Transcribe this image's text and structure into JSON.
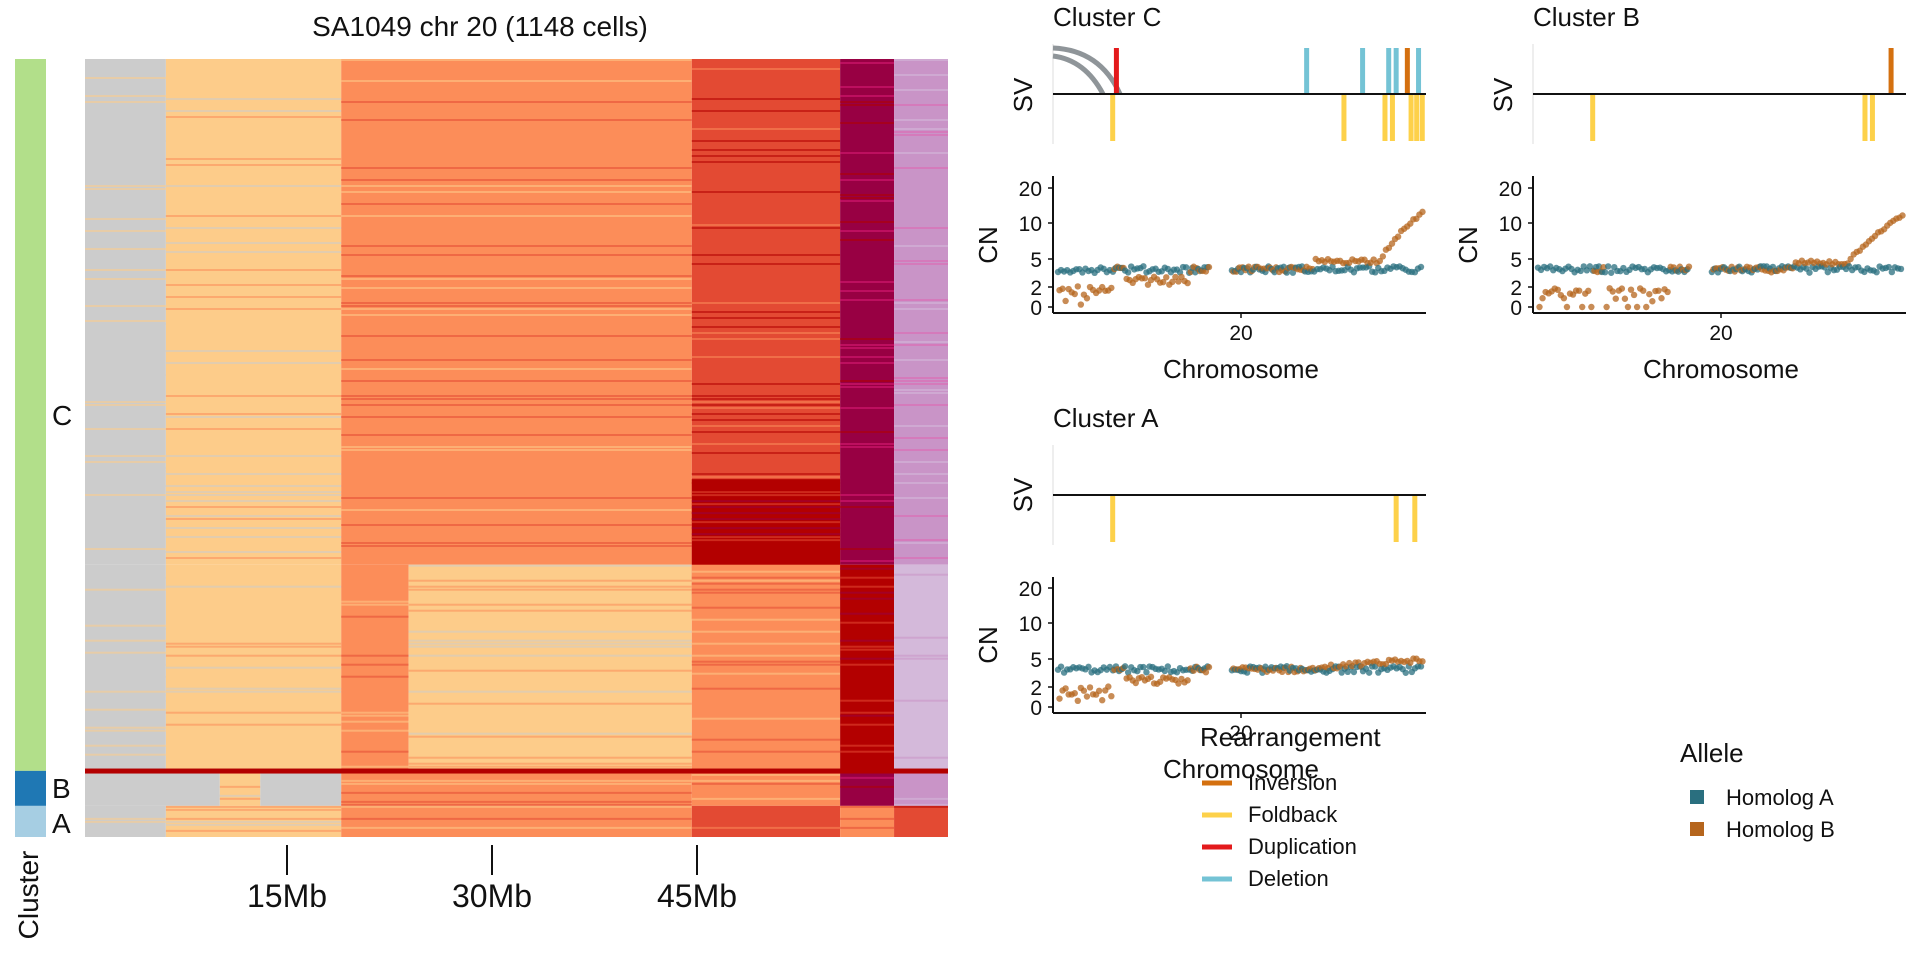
{
  "heatmap": {
    "title": "SA1049 chr 20 (1148 cells)",
    "x_ticks": [
      "15Mb",
      "30Mb",
      "45Mb"
    ],
    "cluster_axis_label": "Cluster",
    "clusters": [
      {
        "label": "C",
        "color": "#b2df8a"
      },
      {
        "label": "B",
        "color": "#1f78b4"
      },
      {
        "label": "A",
        "color": "#a6cee3"
      }
    ],
    "colors": {
      "cn0": "#3182bd",
      "cn1": "#9ecae1",
      "cn2": "#cccccc",
      "cn3": "#fdcc8a",
      "cn4": "#fc8d59",
      "cn5": "#e34a33",
      "cn6": "#b30000",
      "cn7": "#980043",
      "cn8": "#dd1c77",
      "cn9": "#df65b0",
      "cn10": "#c994c7",
      "cn11": "#d4b9da"
    }
  },
  "panels": [
    {
      "title": "Cluster C",
      "sv_label": "SV",
      "cn_label": "CN",
      "x_label": "Chromosome",
      "x_tick": "20",
      "y_ticks": [
        "0",
        "2",
        "5",
        "10",
        "20"
      ]
    },
    {
      "title": "Cluster B",
      "sv_label": "SV",
      "cn_label": "CN",
      "x_label": "Chromosome",
      "x_tick": "20",
      "y_ticks": [
        "0",
        "2",
        "5",
        "10",
        "20"
      ]
    },
    {
      "title": "Cluster A",
      "sv_label": "SV",
      "cn_label": "CN",
      "x_label": "Chromosome",
      "x_tick": "20",
      "y_ticks": [
        "0",
        "2",
        "5",
        "10",
        "20"
      ]
    }
  ],
  "legends": {
    "rearrangement": {
      "title": "Rearrangement",
      "items": [
        {
          "label": "Inversion",
          "color": "#d4700f"
        },
        {
          "label": "Foldback",
          "color": "#fdd14a"
        },
        {
          "label": "Duplication",
          "color": "#e31a1c"
        },
        {
          "label": "Deletion",
          "color": "#74c3d5"
        }
      ]
    },
    "allele": {
      "title": "Allele",
      "items": [
        {
          "label": "Homolog A",
          "color": "#2a6f7f"
        },
        {
          "label": "Homolog B",
          "color": "#b5651d"
        }
      ]
    }
  },
  "chart_data": [
    {
      "type": "heatmap",
      "title": "SA1049 chr 20 (1148 cells)",
      "xlabel": "",
      "ylabel": "Cluster",
      "x_ticks": [
        "15Mb",
        "30Mb",
        "45Mb"
      ],
      "x_tick_values_mb": [
        15,
        30,
        45
      ],
      "x_range_mb": [
        0,
        64
      ],
      "total_cells": 1148,
      "cluster_order": [
        "C",
        "B",
        "A"
      ],
      "cluster_cell_fraction": [
        0.915,
        0.045,
        0.04
      ],
      "value_levels": [
        "cn0",
        "cn1",
        "cn2",
        "cn3",
        "cn4",
        "cn5",
        "cn6",
        "cn7",
        "cn8",
        "cn9",
        "cn10",
        "cn11"
      ],
      "segments": [
        {
          "cluster": "C",
          "from_cell": 0.0,
          "to_cell": 0.65,
          "bins": [
            [
              0,
              6,
              "cn2"
            ],
            [
              6,
              19,
              "cn3"
            ],
            [
              19,
              45,
              "cn4"
            ],
            [
              45,
              56,
              "cn5"
            ],
            [
              56,
              60,
              "cn7"
            ],
            [
              60,
              64,
              "cn10"
            ]
          ]
        },
        {
          "cluster": "C",
          "from_cell": 0.54,
          "to_cell": 0.72,
          "bins": [
            [
              45,
              56,
              "cn6"
            ]
          ]
        },
        {
          "cluster": "C",
          "from_cell": 0.65,
          "to_cell": 0.915,
          "bins": [
            [
              0,
              6,
              "cn2"
            ],
            [
              6,
              19,
              "cn3"
            ],
            [
              19,
              24,
              "cn4"
            ],
            [
              24,
              45,
              "cn3"
            ],
            [
              45,
              56,
              "cn4"
            ],
            [
              56,
              60,
              "cn6"
            ],
            [
              60,
              64,
              "cn11"
            ]
          ]
        },
        {
          "cluster": "B",
          "from_cell": 0.915,
          "to_cell": 0.96,
          "bins": [
            [
              0,
              10,
              "cn2"
            ],
            [
              10,
              13,
              "cn3"
            ],
            [
              13,
              19,
              "cn2"
            ],
            [
              19,
              45,
              "cn4"
            ],
            [
              45,
              56,
              "cn4"
            ],
            [
              56,
              60,
              "cn7"
            ],
            [
              60,
              64,
              "cn10"
            ]
          ]
        },
        {
          "cluster": "A",
          "from_cell": 0.96,
          "to_cell": 1.0,
          "bins": [
            [
              0,
              6,
              "cn2"
            ],
            [
              6,
              19,
              "cn3"
            ],
            [
              19,
              45,
              "cn4"
            ],
            [
              45,
              56,
              "cn5"
            ],
            [
              56,
              60,
              "cn4"
            ],
            [
              60,
              64,
              "cn5"
            ]
          ]
        }
      ]
    },
    {
      "type": "scatter",
      "title": "Cluster C",
      "xlabel": "Chromosome",
      "ylabel": "CN",
      "x_tick": "20",
      "y_ticks": [
        0,
        2,
        5,
        10,
        20
      ],
      "sv_tracks": {
        "above": [
          {
            "pos": 0.17,
            "type": "Duplication"
          },
          {
            "pos": 0.68,
            "type": "Deletion"
          },
          {
            "pos": 0.83,
            "type": "Deletion"
          },
          {
            "pos": 0.9,
            "type": "Deletion"
          },
          {
            "pos": 0.92,
            "type": "Deletion"
          },
          {
            "pos": 0.95,
            "type": "Inversion"
          },
          {
            "pos": 0.98,
            "type": "Deletion"
          }
        ],
        "below": [
          {
            "pos": 0.16,
            "type": "Foldback"
          },
          {
            "pos": 0.78,
            "type": "Foldback"
          },
          {
            "pos": 0.89,
            "type": "Foldback"
          },
          {
            "pos": 0.91,
            "type": "Foldback"
          },
          {
            "pos": 0.96,
            "type": "Foldback"
          },
          {
            "pos": 0.975,
            "type": "Foldback"
          },
          {
            "pos": 0.99,
            "type": "Foldback"
          }
        ]
      },
      "series": [
        {
          "name": "Homolog A",
          "shape": "flat ~2 across chromosome"
        },
        {
          "name": "Homolog B",
          "shape": "~0-1 early, ~2 middle, rising to ~10-13 at end"
        }
      ]
    },
    {
      "type": "scatter",
      "title": "Cluster B",
      "xlabel": "Chromosome",
      "ylabel": "CN",
      "x_tick": "20",
      "y_ticks": [
        0,
        2,
        5,
        10,
        20
      ],
      "sv_tracks": {
        "above": [
          {
            "pos": 0.96,
            "type": "Inversion"
          }
        ],
        "below": [
          {
            "pos": 0.16,
            "type": "Foldback"
          },
          {
            "pos": 0.89,
            "type": "Foldback"
          },
          {
            "pos": 0.91,
            "type": "Foldback"
          }
        ]
      },
      "series": [
        {
          "name": "Homolog A",
          "shape": "flat ~2 across chromosome"
        },
        {
          "name": "Homolog B",
          "shape": "~0 early, ~2 middle, rising to ~12 at end"
        }
      ]
    },
    {
      "type": "scatter",
      "title": "Cluster A",
      "xlabel": "Chromosome",
      "ylabel": "CN",
      "x_tick": "20",
      "y_ticks": [
        0,
        2,
        5,
        10,
        20
      ],
      "sv_tracks": {
        "above": [],
        "below": [
          {
            "pos": 0.16,
            "type": "Foldback"
          },
          {
            "pos": 0.92,
            "type": "Foldback"
          },
          {
            "pos": 0.97,
            "type": "Foldback"
          }
        ]
      },
      "series": [
        {
          "name": "Homolog A",
          "shape": "flat ~2 across chromosome"
        },
        {
          "name": "Homolog B",
          "shape": "~0-1 early, ~2 middle, ~3 at end"
        }
      ]
    }
  ]
}
